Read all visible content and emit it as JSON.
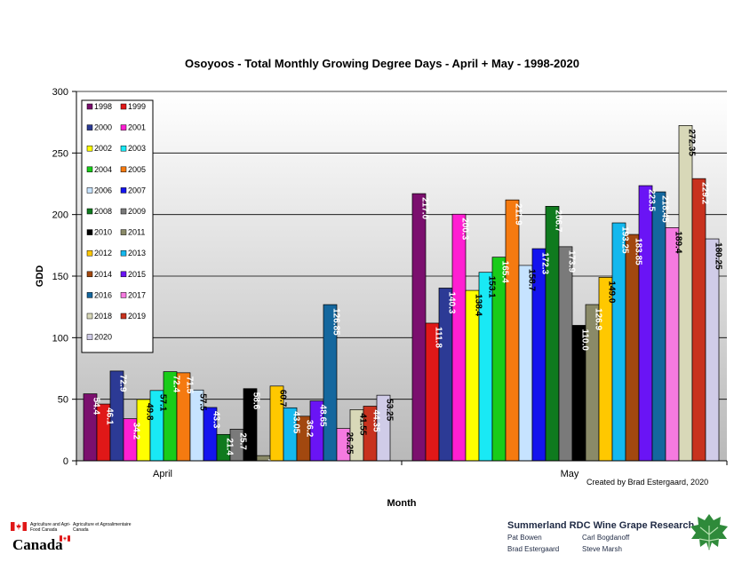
{
  "chart_data": {
    "type": "bar",
    "title": "Osoyoos - Total Monthly Growing Degree Days - April + May - 1998-2020",
    "xlabel": "Month",
    "ylabel": "GDD",
    "ylim": [
      0,
      300
    ],
    "yticks": [
      0,
      50,
      100,
      150,
      200,
      250,
      300
    ],
    "categories": [
      "April",
      "May"
    ],
    "grid": true,
    "legend_position": "top-left",
    "series": [
      {
        "name": "1998",
        "color": "#7b0f6e",
        "values": [
          54.4,
          217.0
        ],
        "labels": [
          "54.4",
          "217.0"
        ]
      },
      {
        "name": "1999",
        "color": "#e01818",
        "values": [
          46.1,
          111.8
        ],
        "labels": [
          "46.1",
          "111.8"
        ]
      },
      {
        "name": "2000",
        "color": "#2c3a95",
        "values": [
          72.9,
          140.3
        ],
        "labels": [
          "72.9",
          "140.3"
        ]
      },
      {
        "name": "2001",
        "color": "#ff1fd2",
        "values": [
          34.2,
          200.3
        ],
        "labels": [
          "34.2",
          "200.3"
        ]
      },
      {
        "name": "2002",
        "color": "#ffff00",
        "values": [
          49.8,
          138.4
        ],
        "labels": [
          "49.8",
          "138.4"
        ]
      },
      {
        "name": "2003",
        "color": "#19e9f5",
        "values": [
          57.1,
          153.1
        ],
        "labels": [
          "57.1",
          "153.1"
        ]
      },
      {
        "name": "2004",
        "color": "#19cc19",
        "values": [
          72.4,
          165.4
        ],
        "labels": [
          "72.4",
          "165.4"
        ]
      },
      {
        "name": "2005",
        "color": "#f57a10",
        "values": [
          71.5,
          211.9
        ],
        "labels": [
          "71.5",
          "211.9"
        ]
      },
      {
        "name": "2006",
        "color": "#c6e3ff",
        "values": [
          57.5,
          158.7
        ],
        "labels": [
          "57.5",
          "158.7"
        ]
      },
      {
        "name": "2007",
        "color": "#1414ee",
        "values": [
          43.3,
          172.3
        ],
        "labels": [
          "43.3",
          "172.3"
        ]
      },
      {
        "name": "2008",
        "color": "#0f7a1e",
        "values": [
          21.4,
          206.7
        ],
        "labels": [
          "21.4",
          "206.7"
        ]
      },
      {
        "name": "2009",
        "color": "#7a7a7a",
        "values": [
          25.7,
          173.9
        ],
        "labels": [
          "25.7",
          "173.9"
        ]
      },
      {
        "name": "2010",
        "color": "#000000",
        "values": [
          58.6,
          110.0
        ],
        "labels": [
          "58.6",
          "110.0"
        ]
      },
      {
        "name": "2011",
        "color": "#8a8a68",
        "values": [
          4.2,
          126.9
        ],
        "labels": [
          "4.2",
          "126.9"
        ]
      },
      {
        "name": "2012",
        "color": "#ffc800",
        "values": [
          60.7,
          149.0
        ],
        "labels": [
          "60.7",
          "149.0"
        ]
      },
      {
        "name": "2013",
        "color": "#14b8ee",
        "values": [
          43.05,
          193.25
        ],
        "labels": [
          "43.05",
          "193.25"
        ]
      },
      {
        "name": "2014",
        "color": "#a2480f",
        "values": [
          36.2,
          183.85
        ],
        "labels": [
          "36.2",
          "183.85"
        ]
      },
      {
        "name": "2015",
        "color": "#6a14f5",
        "values": [
          48.65,
          223.5
        ],
        "labels": [
          "48.65",
          "223.5"
        ]
      },
      {
        "name": "2016",
        "color": "#14679e",
        "values": [
          126.85,
          218.45
        ],
        "labels": [
          "126.85",
          "218.45"
        ]
      },
      {
        "name": "2017",
        "color": "#f57ae0",
        "values": [
          26.25,
          189.4
        ],
        "labels": [
          "26.25",
          "189.4"
        ]
      },
      {
        "name": "2018",
        "color": "#d8d8b8",
        "values": [
          41.55,
          272.35
        ],
        "labels": [
          "41.55",
          "272.35"
        ]
      },
      {
        "name": "2019",
        "color": "#c8321e",
        "values": [
          44.35,
          229.2
        ],
        "labels": [
          "44.35",
          "229.2"
        ]
      },
      {
        "name": "2020",
        "color": "#d0cce8",
        "values": [
          53.25,
          180.25
        ],
        "labels": [
          "53.25",
          "180.25"
        ]
      }
    ]
  },
  "credit": "Created by Brad Estergaard, 2020",
  "research": {
    "title": "Summerland RDC Wine Grape Research",
    "people": [
      "Pat Bowen",
      "Carl Bogdanoff",
      "Brad Estergaard",
      "Steve Marsh"
    ]
  },
  "agency": {
    "english": "Agriculture and Agri-Food Canada",
    "french": "Agriculture et Agroalimentaire Canada",
    "wordmark": "Canada"
  }
}
